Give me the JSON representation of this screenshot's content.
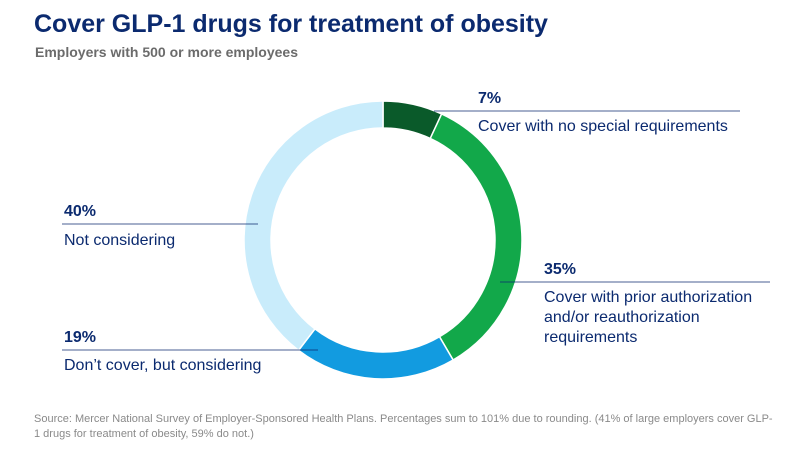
{
  "chart_data": {
    "type": "pie",
    "title": "Cover GLP-1 drugs for treatment of obesity",
    "subtitle": "Employers with 500 or more employees",
    "slices": [
      {
        "label": "Cover with no special requirements",
        "value": 7,
        "value_label": "7%",
        "color": "#0a5a2a"
      },
      {
        "label": "Cover with prior authorization and/or reauthorization requirements",
        "value": 35,
        "value_label": "35%",
        "color": "#12a84a"
      },
      {
        "label": "Don’t cover, but considering",
        "value": 19,
        "value_label": "19%",
        "color": "#129be0"
      },
      {
        "label": "Not considering",
        "value": 40,
        "value_label": "40%",
        "color": "#c9ecfb"
      }
    ],
    "source": "Source: Mercer National Survey of Employer-Sponsored Health Plans. Percentages sum to 101% due to rounding. (41% of large employers cover GLP-1 drugs for treatment of obesity, 59% do not.)"
  }
}
